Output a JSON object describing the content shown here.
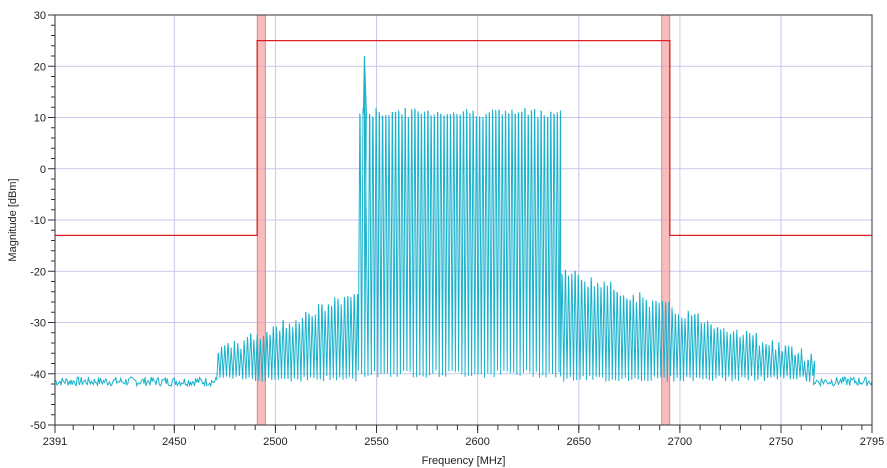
{
  "chart_data": {
    "type": "line",
    "title": "",
    "xlabel": "Frequency [MHz]",
    "ylabel": "Magnitude [dBm]",
    "xlim": [
      2391,
      2795
    ],
    "ylim": [
      -50,
      30
    ],
    "x_tick_labels": [
      "2391",
      "2450",
      "2500",
      "2550",
      "2600",
      "2650",
      "2700",
      "2750",
      "2795"
    ],
    "y_tick_labels": [
      "30",
      "20",
      "10",
      "0",
      "-10",
      "-20",
      "-30",
      "-40",
      "-50"
    ],
    "grid": true,
    "legend": "none",
    "series": [
      {
        "role": "spectrum",
        "color": "#19b2cc",
        "noise_floor": -41.5,
        "center_block": {
          "x_start": 2541,
          "x_end": 2641,
          "peak": 11,
          "valley": -40,
          "channel_spacing": 1.6
        },
        "spur": {
          "x": 2544,
          "y": 22
        },
        "shoulders": [
          {
            "x_start": 2471,
            "x_end": 2541,
            "peak_start": -36,
            "peak_end": -24,
            "valley": -41
          },
          {
            "x_start": 2641,
            "x_end": 2766,
            "peak_start": -20,
            "peak_end": -37,
            "valley": -41
          }
        ]
      },
      {
        "role": "mask",
        "color": "#e02020",
        "points": [
          [
            2391,
            -13
          ],
          [
            2491,
            -13
          ],
          [
            2491,
            25
          ],
          [
            2695,
            25
          ],
          [
            2695,
            -13
          ],
          [
            2795,
            -13
          ]
        ]
      }
    ],
    "highlight_bands": [
      {
        "x_start": 2491,
        "x_end": 2495,
        "color": "#f4a6a6"
      },
      {
        "x_start": 2691,
        "x_end": 2695,
        "color": "#f4a6a6"
      }
    ]
  }
}
